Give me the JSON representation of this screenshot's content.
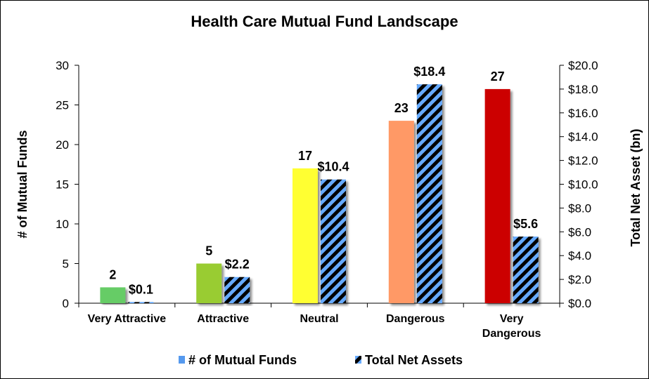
{
  "chart_data": {
    "type": "bar",
    "title": "Health Care Mutual Fund Landscape",
    "categories": [
      "Very Attractive",
      "Attractive",
      "Neutral",
      "Dangerous",
      "Very Dangerous"
    ],
    "category_lines": [
      [
        "Very Attractive"
      ],
      [
        "Attractive"
      ],
      [
        "Neutral"
      ],
      [
        "Dangerous"
      ],
      [
        "Very",
        "Dangerous"
      ]
    ],
    "series": [
      {
        "name": "# of Mutual Funds",
        "axis": "left",
        "values": [
          2,
          5,
          17,
          23,
          27
        ],
        "labels": [
          "2",
          "5",
          "17",
          "23",
          "27"
        ],
        "colors": [
          "#66cc66",
          "#99cc33",
          "#ffff33",
          "#ff9966",
          "#cc0000"
        ]
      },
      {
        "name": "Total Net Assets",
        "axis": "right",
        "values": [
          0.1,
          2.2,
          10.4,
          18.4,
          5.6
        ],
        "labels": [
          "$0.1",
          "$2.2",
          "$10.4",
          "$18.4",
          "$5.6"
        ],
        "pattern_colors": [
          "#66aaff",
          "#000000"
        ]
      }
    ],
    "ylabel_left": "# of Mutual Funds",
    "ylabel_right": "Total Net Asset (bn)",
    "ylim_left": [
      0,
      30
    ],
    "ylim_right": [
      0,
      20
    ],
    "yticks_left": [
      "0",
      "5",
      "10",
      "15",
      "20",
      "25",
      "30"
    ],
    "yticks_right": [
      "$0.0",
      "$2.0",
      "$4.0",
      "$6.0",
      "$8.0",
      "$10.0",
      "$12.0",
      "$14.0",
      "$16.0",
      "$18.0",
      "$20.0"
    ],
    "legend_position": "bottom",
    "legend_colors": {
      "funds": "#5599ee"
    },
    "grid": false
  }
}
